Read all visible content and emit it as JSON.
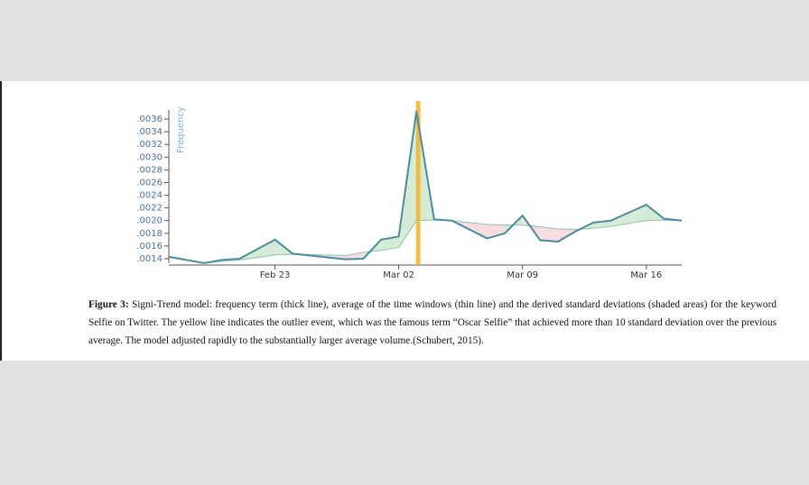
{
  "chart_data": {
    "type": "line",
    "y_label": "Frequency",
    "x": [
      0,
      2,
      3,
      4,
      6,
      7,
      10,
      11,
      12,
      13,
      14,
      15,
      16,
      18,
      19,
      20,
      21,
      22,
      23,
      24,
      25,
      27,
      28,
      29
    ],
    "series": [
      {
        "color": "#4a8c9e",
        "width": 2,
        "values": [
          0.00143,
          0.00133,
          0.00138,
          0.0014,
          0.0017,
          0.00148,
          0.00139,
          0.0014,
          0.0017,
          0.00175,
          0.00372,
          0.00202,
          0.002,
          0.00172,
          0.0018,
          0.00208,
          0.00169,
          0.00167,
          0.00183,
          0.00197,
          0.002,
          0.00225,
          0.00203,
          0.002
        ]
      },
      {
        "color": "#9cc9b0",
        "width": 1.2,
        "values": [
          0.00143,
          0.00133,
          0.00136,
          0.00138,
          0.00146,
          0.00147,
          0.00145,
          0.0015,
          0.00153,
          0.00158,
          0.002,
          0.00201,
          0.002,
          0.00194,
          0.00193,
          0.00193,
          0.0019,
          0.00187,
          0.00186,
          0.00188,
          0.00191,
          0.002,
          0.00201,
          0.002
        ]
      }
    ],
    "shade_colors": {
      "above": "rgba(120,190,120,0.3)",
      "below": "rgba(230,140,155,0.3)"
    },
    "highlight": {
      "x": 14.1,
      "color": "#f0b429"
    },
    "xlim": [
      0,
      29
    ],
    "xticks": [
      {
        "value": 6,
        "label": "Feb 23"
      },
      {
        "value": 13,
        "label": "Mar 02"
      },
      {
        "value": 20,
        "label": "Mar 09"
      },
      {
        "value": 27,
        "label": "Mar 16"
      }
    ],
    "ylim": [
      0.0013,
      0.0038
    ],
    "yticks": [
      {
        "value": 0.0014,
        "label": ".0014"
      },
      {
        "value": 0.0016,
        "label": ".0016"
      },
      {
        "value": 0.0018,
        "label": ".0018"
      },
      {
        "value": 0.002,
        "label": ".0020"
      },
      {
        "value": 0.0022,
        "label": ".0022"
      },
      {
        "value": 0.0024,
        "label": ".0024"
      },
      {
        "value": 0.0026,
        "label": ".0026"
      },
      {
        "value": 0.0028,
        "label": ".0028"
      },
      {
        "value": 0.003,
        "label": ".0030"
      },
      {
        "value": 0.0032,
        "label": ".0032"
      },
      {
        "value": 0.0034,
        "label": ".0034"
      },
      {
        "value": 0.0036,
        "label": ".0036"
      }
    ]
  },
  "caption": {
    "label": "Figure 3:",
    "text": "Signi-Trend model: frequency term (thick line), average of the time windows (thin line) and the derived standard deviations (shaded areas) for the keyword Selfie on Twitter. The yellow line indicates the outlier event, which was the famous term “Oscar Selfie” that achieved more than 10 standard deviation over the previous average. The model adjusted rapidly to the substantially larger average volume.(Schubert, 2015)."
  }
}
